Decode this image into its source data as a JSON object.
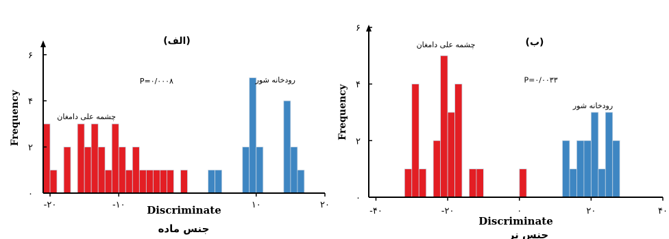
{
  "chart_data": [
    {
      "type": "bar",
      "title": "(الف)",
      "xlabel": "Discriminate",
      "ylabel": "Frequency",
      "subtitle": "جنس ماده",
      "annotation": "P=۰/۰۰۰۸",
      "xlim": [
        -21,
        20
      ],
      "ylim": [
        0,
        6.5
      ],
      "xticks": [
        -20,
        -10,
        10,
        20
      ],
      "xtick_labels": [
        "-۲۰",
        "-۱۰",
        "۱۰",
        "۲۰"
      ],
      "yticks": [
        0,
        2,
        4,
        6
      ],
      "ytick_labels": [
        "۰",
        "۲",
        "۴",
        "۶"
      ],
      "bin_width": 1,
      "series": [
        {
          "name": "چشمه علی دامغان",
          "color": "#e31e24",
          "bins": [
            {
              "x": -21,
              "y": 3
            },
            {
              "x": -20,
              "y": 1
            },
            {
              "x": -18,
              "y": 2
            },
            {
              "x": -16,
              "y": 3
            },
            {
              "x": -15,
              "y": 2
            },
            {
              "x": -14,
              "y": 3
            },
            {
              "x": -13,
              "y": 2
            },
            {
              "x": -12,
              "y": 1
            },
            {
              "x": -11,
              "y": 3
            },
            {
              "x": -10,
              "y": 2
            },
            {
              "x": -9,
              "y": 1
            },
            {
              "x": -8,
              "y": 2
            },
            {
              "x": -7,
              "y": 1
            },
            {
              "x": -6,
              "y": 1
            },
            {
              "x": -5,
              "y": 1
            },
            {
              "x": -4,
              "y": 1
            },
            {
              "x": -3,
              "y": 1
            },
            {
              "x": -1,
              "y": 1
            }
          ],
          "label_pos": {
            "x": -14.7,
            "y": 3.2
          }
        },
        {
          "name": "رودخانه شور",
          "color": "#3e86c2",
          "bins": [
            {
              "x": 3,
              "y": 1
            },
            {
              "x": 4,
              "y": 1
            },
            {
              "x": 8,
              "y": 2
            },
            {
              "x": 9,
              "y": 5
            },
            {
              "x": 10,
              "y": 2
            },
            {
              "x": 14,
              "y": 4
            },
            {
              "x": 15,
              "y": 2
            },
            {
              "x": 16,
              "y": 1
            }
          ],
          "label_pos": {
            "x": 12.8,
            "y": 4.8
          }
        }
      ],
      "annotation_pos": {
        "x": -4.5,
        "y": 4.75
      }
    },
    {
      "type": "bar",
      "title": "(ب)",
      "xlabel": "Discriminate",
      "ylabel": "Frequency",
      "subtitle": "جنس نر",
      "annotation": "P=۰/۰۰۳۳",
      "xlim": [
        -42,
        40
      ],
      "ylim": [
        0,
        6
      ],
      "xticks": [
        -40,
        -20,
        0,
        20,
        40
      ],
      "xtick_labels": [
        "-۴۰",
        "-۲۰",
        "۰",
        "۲۰",
        "۴۰"
      ],
      "yticks": [
        0,
        2,
        4,
        6
      ],
      "ytick_labels": [
        "۰",
        "۲",
        "۴",
        "۶"
      ],
      "bin_width": 2,
      "series": [
        {
          "name": "چشمه علی دامغان",
          "color": "#e31e24",
          "bins": [
            {
              "x": -32,
              "y": 1
            },
            {
              "x": -30,
              "y": 4
            },
            {
              "x": -28,
              "y": 1
            },
            {
              "x": -24,
              "y": 2
            },
            {
              "x": -22,
              "y": 5
            },
            {
              "x": -20,
              "y": 3
            },
            {
              "x": -18,
              "y": 4
            },
            {
              "x": -14,
              "y": 1
            },
            {
              "x": -12,
              "y": 1
            },
            {
              "x": 0,
              "y": 1
            }
          ],
          "label_pos": {
            "x": -20.5,
            "y": 5.3
          }
        },
        {
          "name": "رودخانه شور",
          "color": "#3e86c2",
          "bins": [
            {
              "x": 12,
              "y": 2
            },
            {
              "x": 14,
              "y": 1
            },
            {
              "x": 16,
              "y": 2
            },
            {
              "x": 18,
              "y": 2
            },
            {
              "x": 20,
              "y": 3
            },
            {
              "x": 22,
              "y": 1
            },
            {
              "x": 24,
              "y": 3
            },
            {
              "x": 26,
              "y": 2
            }
          ],
          "label_pos": {
            "x": 20.5,
            "y": 3.15
          }
        }
      ],
      "annotation_pos": {
        "x": 6,
        "y": 4.05
      }
    }
  ]
}
